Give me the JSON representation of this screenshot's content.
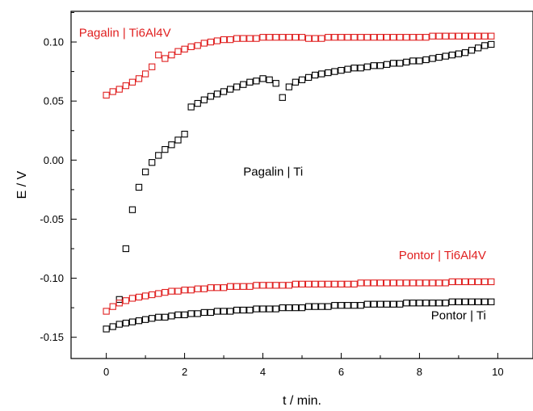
{
  "colors": {
    "red": "#e02020",
    "black": "#000000"
  },
  "chart_data": {
    "type": "scatter",
    "xlabel": "t / min.",
    "ylabel": "E / V",
    "xlim": [
      -0.9,
      10.9
    ],
    "ylim": [
      -0.168,
      0.126
    ],
    "x_ticks": [
      "0",
      "2",
      "4",
      "6",
      "8",
      "10"
    ],
    "y_ticks": [
      "0.10",
      "0.05",
      "0.00",
      "-0.05",
      "-0.10",
      "-0.15"
    ],
    "grid": false,
    "marker": "open-square",
    "series": [
      {
        "name": "Pagalin | Ti6Al4V",
        "color": "#e02020",
        "x": [
          0,
          0.167,
          0.333,
          0.5,
          0.667,
          0.833,
          1.0,
          1.167,
          1.333,
          1.5,
          1.667,
          1.833,
          2.0,
          2.167,
          2.333,
          2.5,
          2.667,
          2.833,
          3.0,
          3.167,
          3.333,
          3.5,
          3.667,
          3.833,
          4.0,
          4.167,
          4.333,
          4.5,
          4.667,
          4.833,
          5.0,
          5.167,
          5.333,
          5.5,
          5.667,
          5.833,
          6.0,
          6.167,
          6.333,
          6.5,
          6.667,
          6.833,
          7.0,
          7.167,
          7.333,
          7.5,
          7.667,
          7.833,
          8.0,
          8.167,
          8.333,
          8.5,
          8.667,
          8.833,
          9.0,
          9.167,
          9.333,
          9.5,
          9.667,
          9.833
        ],
        "y": [
          0.055,
          0.058,
          0.06,
          0.063,
          0.066,
          0.069,
          0.073,
          0.079,
          0.089,
          0.086,
          0.089,
          0.092,
          0.094,
          0.096,
          0.097,
          0.099,
          0.1,
          0.101,
          0.102,
          0.102,
          0.103,
          0.103,
          0.103,
          0.103,
          0.104,
          0.104,
          0.104,
          0.104,
          0.104,
          0.104,
          0.104,
          0.103,
          0.103,
          0.103,
          0.104,
          0.104,
          0.104,
          0.104,
          0.104,
          0.104,
          0.104,
          0.104,
          0.104,
          0.104,
          0.104,
          0.104,
          0.104,
          0.104,
          0.104,
          0.104,
          0.105,
          0.105,
          0.105,
          0.105,
          0.105,
          0.105,
          0.105,
          0.105,
          0.105,
          0.105
        ]
      },
      {
        "name": "Pagalin | Ti",
        "color": "#000000",
        "x": [
          0.333,
          0.5,
          0.667,
          0.833,
          1.0,
          1.167,
          1.333,
          1.5,
          1.667,
          1.833,
          2.0,
          2.167,
          2.333,
          2.5,
          2.667,
          2.833,
          3.0,
          3.167,
          3.333,
          3.5,
          3.667,
          3.833,
          4.0,
          4.167,
          4.333,
          4.5,
          4.667,
          4.833,
          5.0,
          5.167,
          5.333,
          5.5,
          5.667,
          5.833,
          6.0,
          6.167,
          6.333,
          6.5,
          6.667,
          6.833,
          7.0,
          7.167,
          7.333,
          7.5,
          7.667,
          7.833,
          8.0,
          8.167,
          8.333,
          8.5,
          8.667,
          8.833,
          9.0,
          9.167,
          9.333,
          9.5,
          9.667,
          9.833
        ],
        "y": [
          -0.118,
          -0.075,
          -0.042,
          -0.023,
          -0.01,
          -0.002,
          0.004,
          0.009,
          0.013,
          0.017,
          0.022,
          0.045,
          0.048,
          0.051,
          0.054,
          0.056,
          0.058,
          0.06,
          0.062,
          0.064,
          0.066,
          0.067,
          0.069,
          0.068,
          0.065,
          0.053,
          0.062,
          0.066,
          0.068,
          0.07,
          0.072,
          0.073,
          0.074,
          0.075,
          0.076,
          0.077,
          0.078,
          0.078,
          0.079,
          0.08,
          0.08,
          0.081,
          0.082,
          0.082,
          0.083,
          0.084,
          0.084,
          0.085,
          0.086,
          0.087,
          0.088,
          0.089,
          0.09,
          0.091,
          0.093,
          0.095,
          0.097,
          0.098
        ]
      },
      {
        "name": "Pontor | Ti6Al4V",
        "color": "#e02020",
        "x": [
          0,
          0.167,
          0.333,
          0.5,
          0.667,
          0.833,
          1.0,
          1.167,
          1.333,
          1.5,
          1.667,
          1.833,
          2.0,
          2.167,
          2.333,
          2.5,
          2.667,
          2.833,
          3.0,
          3.167,
          3.333,
          3.5,
          3.667,
          3.833,
          4.0,
          4.167,
          4.333,
          4.5,
          4.667,
          4.833,
          5.0,
          5.167,
          5.333,
          5.5,
          5.667,
          5.833,
          6.0,
          6.167,
          6.333,
          6.5,
          6.667,
          6.833,
          7.0,
          7.167,
          7.333,
          7.5,
          7.667,
          7.833,
          8.0,
          8.167,
          8.333,
          8.5,
          8.667,
          8.833,
          9.0,
          9.167,
          9.333,
          9.5,
          9.667,
          9.833
        ],
        "y": [
          -0.128,
          -0.124,
          -0.121,
          -0.119,
          -0.117,
          -0.116,
          -0.115,
          -0.114,
          -0.113,
          -0.112,
          -0.111,
          -0.111,
          -0.11,
          -0.11,
          -0.109,
          -0.109,
          -0.108,
          -0.108,
          -0.108,
          -0.107,
          -0.107,
          -0.107,
          -0.107,
          -0.106,
          -0.106,
          -0.106,
          -0.106,
          -0.106,
          -0.106,
          -0.105,
          -0.105,
          -0.105,
          -0.105,
          -0.105,
          -0.105,
          -0.105,
          -0.105,
          -0.105,
          -0.105,
          -0.104,
          -0.104,
          -0.104,
          -0.104,
          -0.104,
          -0.104,
          -0.104,
          -0.104,
          -0.104,
          -0.104,
          -0.104,
          -0.104,
          -0.104,
          -0.104,
          -0.103,
          -0.103,
          -0.103,
          -0.103,
          -0.103,
          -0.103,
          -0.103
        ]
      },
      {
        "name": "Pontor | Ti",
        "color": "#000000",
        "x": [
          0,
          0.167,
          0.333,
          0.5,
          0.667,
          0.833,
          1.0,
          1.167,
          1.333,
          1.5,
          1.667,
          1.833,
          2.0,
          2.167,
          2.333,
          2.5,
          2.667,
          2.833,
          3.0,
          3.167,
          3.333,
          3.5,
          3.667,
          3.833,
          4.0,
          4.167,
          4.333,
          4.5,
          4.667,
          4.833,
          5.0,
          5.167,
          5.333,
          5.5,
          5.667,
          5.833,
          6.0,
          6.167,
          6.333,
          6.5,
          6.667,
          6.833,
          7.0,
          7.167,
          7.333,
          7.5,
          7.667,
          7.833,
          8.0,
          8.167,
          8.333,
          8.5,
          8.667,
          8.833,
          9.0,
          9.167,
          9.333,
          9.5,
          9.667,
          9.833
        ],
        "y": [
          -0.143,
          -0.141,
          -0.139,
          -0.138,
          -0.137,
          -0.136,
          -0.135,
          -0.134,
          -0.133,
          -0.133,
          -0.132,
          -0.131,
          -0.131,
          -0.13,
          -0.13,
          -0.129,
          -0.129,
          -0.128,
          -0.128,
          -0.128,
          -0.127,
          -0.127,
          -0.127,
          -0.126,
          -0.126,
          -0.126,
          -0.126,
          -0.125,
          -0.125,
          -0.125,
          -0.125,
          -0.124,
          -0.124,
          -0.124,
          -0.124,
          -0.123,
          -0.123,
          -0.123,
          -0.123,
          -0.123,
          -0.122,
          -0.122,
          -0.122,
          -0.122,
          -0.122,
          -0.122,
          -0.121,
          -0.121,
          -0.121,
          -0.121,
          -0.121,
          -0.121,
          -0.121,
          -0.12,
          -0.12,
          -0.12,
          -0.12,
          -0.12,
          -0.12,
          -0.12
        ]
      }
    ],
    "annotations": [
      {
        "text": "Pagalin | Ti6Al4V",
        "color": "#e02020",
        "x": -0.7,
        "y": 0.1045
      },
      {
        "text": "Pagalin | Ti",
        "color": "#000000",
        "x": 3.5,
        "y": -0.013
      },
      {
        "text": "Pontor | Ti6Al4V",
        "color": "#e02020",
        "x": 9.7,
        "y": -0.084
      },
      {
        "text": "Pontor | Ti",
        "color": "#000000",
        "x": 9.7,
        "y": -0.135
      }
    ]
  }
}
